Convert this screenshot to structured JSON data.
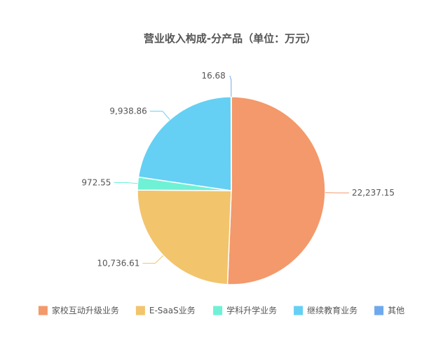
{
  "chart_data": {
    "type": "pie",
    "title": "营业收入构成-分产品（单位：万元）",
    "slices": [
      {
        "name": "家校互动升级业务",
        "value": 22237.15,
        "label": "22,237.15",
        "color": "#f3996b"
      },
      {
        "name": "E-SaaS业务",
        "value": 10736.61,
        "label": "10,736.61",
        "color": "#f2c46c"
      },
      {
        "name": "学科升学业务",
        "value": 972.55,
        "label": "972.55",
        "color": "#6ff1d6"
      },
      {
        "name": "继续教育业务",
        "value": 9938.86,
        "label": "9,938.86",
        "color": "#65d0f3"
      },
      {
        "name": "其他",
        "value": 16.68,
        "label": "16.68",
        "color": "#6ea9ee"
      }
    ],
    "legend_position": "bottom",
    "start_angle": "12 o'clock",
    "direction": "clockwise"
  }
}
